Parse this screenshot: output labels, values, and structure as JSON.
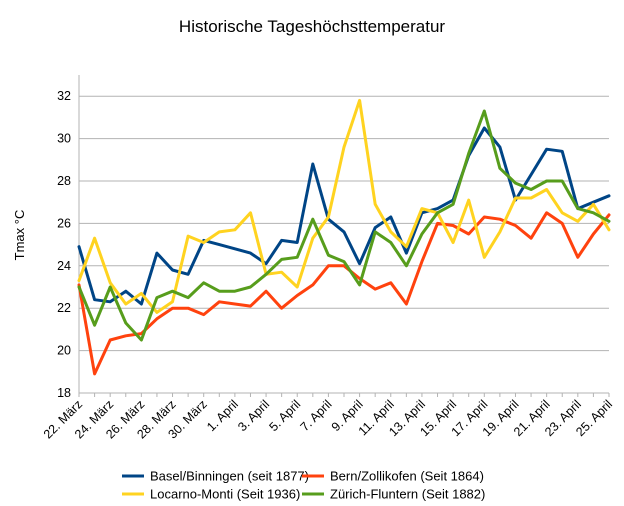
{
  "chart_data": {
    "type": "line",
    "title": "Historische Tageshöchsttemperatur",
    "xlabel": "",
    "ylabel": "Tmax °C",
    "ylim": [
      18,
      33
    ],
    "yticks": [
      18,
      20,
      22,
      24,
      26,
      28,
      30,
      32
    ],
    "grid": "horizontal",
    "legend_position": "bottom",
    "categories": [
      "22. März",
      "23. März",
      "24. März",
      "25. März",
      "26. März",
      "27. März",
      "28. März",
      "29. März",
      "30. März",
      "31. März",
      "1. April",
      "2. April",
      "3. April",
      "4. April",
      "5. April",
      "6. April",
      "7. April",
      "8. April",
      "9. April",
      "10. April",
      "11. April",
      "12. April",
      "13. April",
      "14. April",
      "15. April",
      "16. April",
      "17. April",
      "18. April",
      "19. April",
      "20. April",
      "21. April",
      "22. April",
      "23. April",
      "24. April",
      "25. April"
    ],
    "x_tick_labels": [
      "22. März",
      "24. März",
      "26. März",
      "28. März",
      "30. März",
      "1. April",
      "3. April",
      "5. April",
      "7. April",
      "9. April",
      "11. April",
      "13. April",
      "15. April",
      "17. April",
      "19. April",
      "21. April",
      "23. April",
      "25. April"
    ],
    "series": [
      {
        "name": "Basel/Binningen (seit 1877)",
        "color": "#004586",
        "values": [
          24.9,
          22.4,
          22.3,
          22.8,
          22.2,
          24.6,
          23.8,
          23.6,
          25.2,
          25.0,
          24.8,
          24.6,
          24.1,
          25.2,
          25.1,
          28.8,
          26.2,
          25.6,
          24.1,
          25.8,
          26.3,
          24.6,
          26.5,
          26.7,
          27.1,
          29.2,
          30.5,
          29.6,
          27.1,
          28.3,
          29.5,
          29.4,
          26.7,
          27.0,
          27.3
        ]
      },
      {
        "name": "Bern/Zollikofen (Seit 1864)",
        "color": "#ff420e",
        "values": [
          23.1,
          18.9,
          20.5,
          20.7,
          20.8,
          21.5,
          22.0,
          22.0,
          21.7,
          22.3,
          22.2,
          22.1,
          22.8,
          22.0,
          22.6,
          23.1,
          24.0,
          24.0,
          23.4,
          22.9,
          23.2,
          22.2,
          24.2,
          26.0,
          25.9,
          25.5,
          26.3,
          26.2,
          25.9,
          25.3,
          26.5,
          26.0,
          24.4,
          25.5,
          26.4
        ]
      },
      {
        "name": "Locarno-Monti (Seit 1936)",
        "color": "#ffd320",
        "values": [
          23.3,
          25.3,
          23.2,
          22.2,
          22.7,
          21.8,
          22.3,
          25.4,
          25.1,
          25.6,
          25.7,
          26.5,
          23.6,
          23.7,
          23.0,
          25.3,
          26.3,
          29.6,
          31.8,
          26.9,
          25.6,
          24.9,
          26.7,
          26.5,
          25.1,
          27.1,
          24.4,
          25.6,
          27.2,
          27.2,
          27.6,
          26.5,
          26.1,
          26.9,
          25.7
        ]
      },
      {
        "name": "Zürich-Fluntern (Seit 1882)",
        "color": "#579d1c",
        "values": [
          23.0,
          21.2,
          23.0,
          21.3,
          20.5,
          22.5,
          22.8,
          22.5,
          23.2,
          22.8,
          22.8,
          23.0,
          23.6,
          24.3,
          24.4,
          26.2,
          24.5,
          24.2,
          23.1,
          25.6,
          25.1,
          24.0,
          25.5,
          26.5,
          26.9,
          29.3,
          31.3,
          28.6,
          27.9,
          27.6,
          28.0,
          28.0,
          26.7,
          26.5,
          26.1
        ]
      }
    ]
  }
}
